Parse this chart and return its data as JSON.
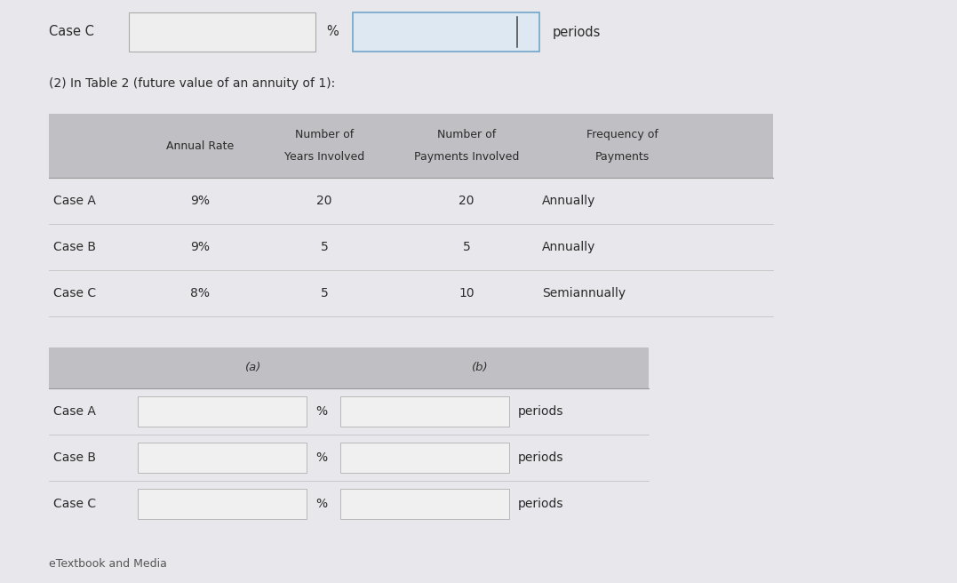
{
  "bg_color": "#e8e8ec",
  "content_bg": "#e8e8ec",
  "title_top": "Case C",
  "subtitle": "(2) In Table 2 (future value of an annuity of 1):",
  "table_header_bg": "#c0c0c4",
  "table_row_bg": "#e4e4e8",
  "input_header_bg": "#c0c0c4",
  "input_box_bg": "#f0f0f0",
  "input_box2_bg": "#dde8f2",
  "input_box2_border": "#7aabcc",
  "input_box_border": "#b8b8b8",
  "text_color": "#2a2a2a",
  "header_text_color": "#2a2a2a",
  "table_rows": [
    [
      "Case A",
      "9%",
      "20",
      "20",
      "Annually"
    ],
    [
      "Case B",
      "9%",
      "5",
      "5",
      "Annually"
    ],
    [
      "Case C",
      "8%",
      "5",
      "10",
      "Semiannually"
    ]
  ],
  "input_header_a": "(a)",
  "input_header_b": "(b)",
  "input_rows": [
    [
      "Case A",
      "%",
      "periods"
    ],
    [
      "Case B",
      "%",
      "periods"
    ],
    [
      "Case C",
      "%",
      "periods"
    ]
  ],
  "bottom_text": "eTextbook and Media"
}
